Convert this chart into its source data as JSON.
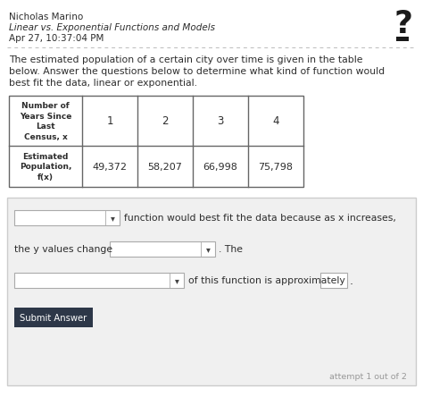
{
  "name": "Nicholas Marino",
  "subject": "Linear vs. Exponential Functions and Models",
  "date": "Apr 27, 10:37:04 PM",
  "body_line1": "The estimated population of a certain city over time is given in the table",
  "body_line2": "below. Answer the questions below to determine what kind of function would",
  "body_line3": "best fit the data, linear or exponential.",
  "table_header_col0": "Number of\nYears Since\nLast\nCensus, x",
  "table_header_cols": [
    "1",
    "2",
    "3",
    "4"
  ],
  "table_row0_label": "Estimated\nPopulation,\nf(x)",
  "table_row0_vals": [
    "49,372",
    "58,207",
    "66,998",
    "75,798"
  ],
  "answer_line1_text": "function would best fit the data because as x increases,",
  "answer_line2_pre": "the y values change",
  "answer_line2_post": ". The",
  "answer_line3_text": "of this function is approximately",
  "submit_btn": "Submit Answer",
  "attempt_text": "attempt 1 out of 2",
  "bg_color": "#ffffff",
  "border_color": "#cccccc",
  "text_color": "#2d2d2d",
  "light_text": "#999999",
  "table_border": "#666666",
  "answer_box_bg": "#f0f0f0",
  "btn_bg": "#2d3748",
  "btn_text": "#ffffff",
  "dropdown_bg": "#ffffff",
  "qmark_color": "#1a1a1a"
}
